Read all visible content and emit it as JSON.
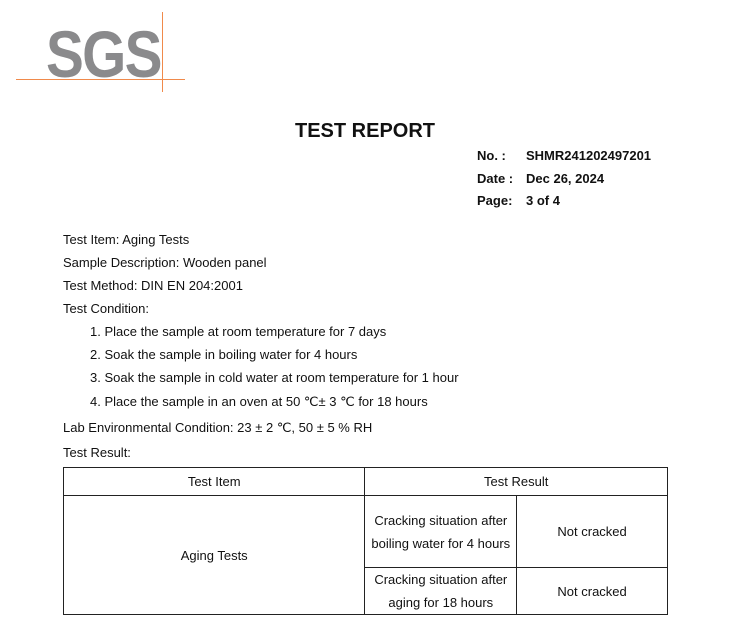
{
  "logo": {
    "text": "SGS",
    "accent_color": "#f08a4b",
    "text_color": "#8a8a8c"
  },
  "title": "TEST REPORT",
  "meta": {
    "no_label": "No.  :",
    "no": "SHMR241202497201",
    "date_label": "Date :",
    "date": "Dec 26, 2024",
    "page_label": "Page:",
    "page": "3 of  4"
  },
  "lines": {
    "test_item": "Test Item: Aging Tests",
    "sample": "Sample Description: Wooden panel",
    "method": "Test Method: DIN EN 204:2001",
    "condition": "Test Condition:",
    "steps": [
      "1. Place the sample at room temperature for 7 days",
      "2. Soak the sample in boiling water for 4 hours",
      "3. Soak the sample in cold water at room temperature for 1 hour",
      "4. Place the sample in an oven at 50 ℃± 3 ℃ for 18 hours"
    ],
    "lab": "Lab Environmental Condition: 23 ± 2 ℃, 50 ± 5 % RH",
    "result": "Test Result:"
  },
  "table": {
    "headers": [
      "Test Item",
      "Test Result"
    ],
    "item": "Aging Tests",
    "rows": [
      {
        "condition": "Cracking situation after boiling water for 4 hours",
        "result": "Not cracked"
      },
      {
        "condition": "Cracking situation after aging for 18 hours",
        "result": "Not cracked"
      }
    ]
  }
}
